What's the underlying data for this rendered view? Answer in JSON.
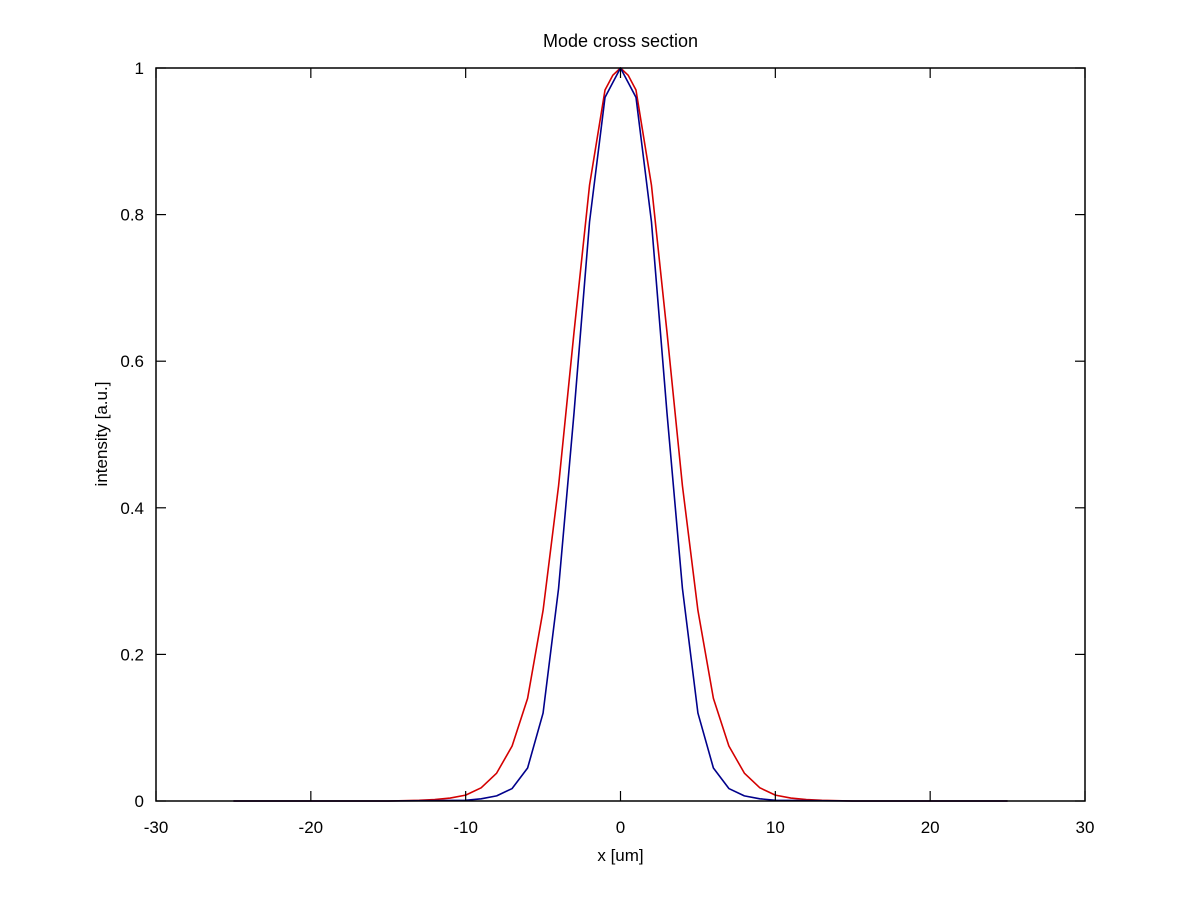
{
  "chart_data": {
    "type": "line",
    "title": "Mode cross section",
    "xlabel": "x [um]",
    "ylabel": "intensity [a.u.]",
    "xlim": [
      -30,
      30
    ],
    "ylim": [
      0,
      1
    ],
    "x_ticks": [
      -30,
      -20,
      -10,
      0,
      10,
      20,
      30
    ],
    "y_ticks": [
      0,
      0.2,
      0.4,
      0.6,
      0.8,
      1
    ],
    "x_tick_labels": [
      "-30",
      "-20",
      "-10",
      "0",
      "10",
      "20",
      "30"
    ],
    "y_tick_labels": [
      "0",
      "0.2",
      "0.4",
      "0.6",
      "0.8",
      "1"
    ],
    "grid": false,
    "legend": "none",
    "series": [
      {
        "color": "#d40000",
        "x": [
          -25,
          -20,
          -15,
          -13,
          -12,
          -11,
          -10,
          -9,
          -8,
          -7,
          -6,
          -5,
          -4,
          -3,
          -2,
          -1,
          -0.5,
          0,
          0.5,
          1,
          2,
          3,
          4,
          5,
          6,
          7,
          8,
          9,
          10,
          11,
          12,
          13,
          15,
          20,
          25
        ],
        "y": [
          0,
          0,
          0,
          0.001,
          0.002,
          0.004,
          0.008,
          0.018,
          0.038,
          0.075,
          0.14,
          0.26,
          0.43,
          0.64,
          0.84,
          0.97,
          0.99,
          1.0,
          0.99,
          0.97,
          0.84,
          0.64,
          0.43,
          0.26,
          0.14,
          0.075,
          0.038,
          0.018,
          0.008,
          0.004,
          0.002,
          0.001,
          0,
          0,
          0
        ]
      },
      {
        "color": "#00008b",
        "x": [
          -25,
          -20,
          -15,
          -10,
          -9,
          -8,
          -7,
          -6,
          -5,
          -4,
          -3,
          -2,
          -1,
          -0.5,
          0,
          0.5,
          1,
          2,
          3,
          4,
          5,
          6,
          7,
          8,
          9,
          10,
          15,
          20,
          25
        ],
        "y": [
          0,
          0,
          0,
          0.001,
          0.003,
          0.007,
          0.017,
          0.045,
          0.12,
          0.29,
          0.53,
          0.79,
          0.96,
          0.98,
          1.0,
          0.98,
          0.96,
          0.79,
          0.53,
          0.29,
          0.12,
          0.045,
          0.017,
          0.007,
          0.003,
          0.001,
          0,
          0,
          0
        ]
      }
    ]
  }
}
